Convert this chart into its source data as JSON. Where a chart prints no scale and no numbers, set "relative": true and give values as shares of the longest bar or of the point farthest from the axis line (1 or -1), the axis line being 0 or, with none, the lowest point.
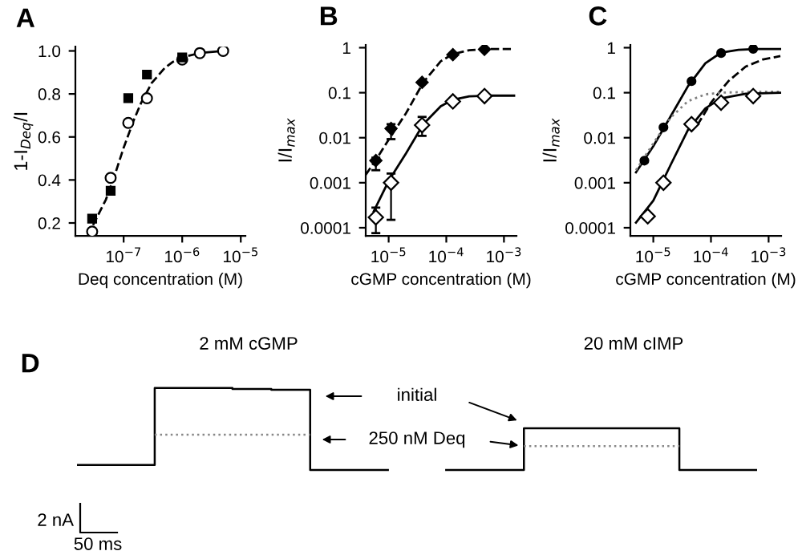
{
  "chart_data": [
    {
      "type": "scatter",
      "title": "A",
      "xlabel": "Deq concentration (M)",
      "ylabel": "1-I$_{Deq}$/I",
      "log": "x",
      "xlim": [
        1.5e-08,
        1.2e-05
      ],
      "ylim": [
        0.14,
        1.02
      ],
      "xticks": [
        {
          "value": 1e-07,
          "label": "10$^{−7}$"
        },
        {
          "value": 1e-06,
          "label": "10$^{−6}$"
        },
        {
          "value": 1e-05,
          "label": "10$^{−5}$"
        }
      ],
      "yticks": [
        0.2,
        0.4,
        0.6,
        0.8,
        {
          "value": 1.0,
          "label": "1.0"
        }
      ],
      "series": [
        {
          "type": "line",
          "line_style": "dashed",
          "marker": "none",
          "color": "#000000",
          "x": [
            3e-08,
            5e-08,
            7e-08,
            1e-07,
            1.5e-07,
            2e-07,
            3e-07,
            5e-07,
            7e-07,
            1e-06,
            2e-06
          ],
          "values": [
            0.19,
            0.31,
            0.42,
            0.55,
            0.68,
            0.76,
            0.85,
            0.92,
            0.95,
            0.97,
            0.99
          ]
        },
        {
          "type": "line",
          "line_style": "solid",
          "marker": "none",
          "color": "#000000",
          "x": [
            2e-06,
            5e-06
          ],
          "values": [
            0.99,
            1.0
          ]
        },
        {
          "marker": "square",
          "color": "#000000",
          "x": [
            2.9e-08,
            6e-08,
            1.2e-07,
            2.5e-07,
            1e-06
          ],
          "values": [
            0.22,
            0.35,
            0.78,
            0.89,
            0.97
          ]
        },
        {
          "marker": "circle",
          "color": "#ffffff",
          "x": [
            2.9e-08,
            6e-08,
            1.2e-07,
            2.5e-07,
            1e-06,
            2e-06,
            5e-06
          ],
          "values": [
            0.16,
            0.41,
            0.665,
            0.78,
            0.96,
            0.99,
            1.0
          ]
        }
      ]
    },
    {
      "type": "scatter",
      "title": "B",
      "xlabel": "cGMP concentration (M)",
      "ylabel": "I/I$_{max}$",
      "log": "xy",
      "xlim": [
        4e-06,
        0.00165
      ],
      "ylim": [
        6.6e-05,
        1.15
      ],
      "xticks": [
        {
          "value": 1e-05,
          "label": "10$^{−5}$"
        },
        {
          "value": 0.0001,
          "label": "10$^{−4}$"
        },
        {
          "value": 0.001,
          "label": "10$^{−3}$"
        }
      ],
      "yticks": [
        0.0001,
        0.001,
        0.01,
        0.1,
        1
      ],
      "series": [
        {
          "type": "line",
          "line_style": "dashed",
          "marker": "none",
          "color": "#000000",
          "x": [
            4e-06,
            6e-06,
            1e-05,
            2e-05,
            4e-05,
            8e-05,
            0.00013,
            0.00025,
            0.0005,
            0.0015
          ],
          "values": [
            0.0015,
            0.0032,
            0.009,
            0.035,
            0.17,
            0.5,
            0.72,
            0.88,
            0.93,
            0.93
          ]
        },
        {
          "type": "line",
          "line_style": "solid",
          "marker": "none",
          "color": "#000000",
          "x": [
            5.5e-06,
            1e-05,
            2e-05,
            4e-05,
            8e-05,
            0.00013,
            0.00025,
            0.0005,
            0.0015
          ],
          "values": [
            0.00023,
            0.0011,
            0.0045,
            0.02,
            0.05,
            0.07,
            0.083,
            0.086,
            0.086
          ]
        },
        {
          "marker": "diamond",
          "color": "#000000",
          "x": [
            6e-06,
            1.1e-05,
            3.8e-05,
            0.00013,
            0.00046
          ],
          "values": [
            0.0031,
            0.016,
            0.17,
            0.7,
            0.92
          ],
          "errors": [
            [
              0.0019,
              0.0036
            ],
            [
              0.0093,
              0.02
            ],
            null,
            null,
            null
          ]
        },
        {
          "marker": "diamond",
          "color": "#ffffff",
          "x": [
            6e-06,
            1.1e-05,
            3.8e-05,
            0.00013,
            0.00046
          ],
          "values": [
            0.00017,
            0.001,
            0.019,
            0.064,
            0.084
          ],
          "errors": [
            [
              7.6e-05,
              0.00028
            ],
            [
              0.00015,
              0.0016
            ],
            [
              0.011,
              0.029
            ],
            null,
            null
          ]
        }
      ]
    },
    {
      "type": "scatter",
      "title": "C",
      "xlabel": "cGMP concentration (M)",
      "ylabel": "I/I$_{max}$",
      "log": "xy",
      "xlim": [
        4e-06,
        0.00165
      ],
      "ylim": [
        6.6e-05,
        1.15
      ],
      "xticks": [
        {
          "value": 1e-05,
          "label": "10$^{−5}$"
        },
        {
          "value": 0.0001,
          "label": "10$^{−4}$"
        },
        {
          "value": 0.001,
          "label": "10$^{−3}$"
        }
      ],
      "yticks": [
        0.0001,
        0.001,
        0.01,
        0.1,
        1
      ],
      "series": [
        {
          "type": "line",
          "line_style": "solid",
          "marker": "none",
          "color": "#000000",
          "x": [
            5e-06,
            1e-05,
            2e-05,
            4e-05,
            8e-05,
            0.00015,
            0.0003,
            0.0006,
            0.0016
          ],
          "values": [
            0.0017,
            0.0065,
            0.03,
            0.14,
            0.45,
            0.78,
            0.9,
            0.93,
            0.93
          ]
        },
        {
          "type": "line",
          "line_style": "dashed",
          "marker": "none",
          "color": "#000000",
          "x": [
            5.8e-05,
            0.0001,
            0.0002,
            0.0004,
            0.0008,
            0.0016
          ],
          "values": [
            0.019,
            0.06,
            0.18,
            0.38,
            0.55,
            0.65
          ]
        },
        {
          "type": "line",
          "line_style": "dotted",
          "marker": "none",
          "color": "#808080",
          "x": [
            5e-06,
            1e-05,
            2e-05,
            4e-05,
            8e-05,
            0.00015,
            0.0005,
            0.0016
          ],
          "values": [
            0.0019,
            0.0075,
            0.028,
            0.065,
            0.092,
            0.1,
            0.105,
            0.105
          ]
        },
        {
          "type": "line",
          "line_style": "solid",
          "marker": "none",
          "color": "#000000",
          "x": [
            5e-06,
            1e-05,
            2e-05,
            4e-05,
            8e-05,
            0.00015,
            0.0004,
            0.0016
          ],
          "values": [
            0.00013,
            0.0004,
            0.0025,
            0.015,
            0.045,
            0.075,
            0.095,
            0.1
          ]
        },
        {
          "marker": "circle",
          "color": "#000000",
          "x": [
            7e-06,
            1.5e-05,
            4.6e-05,
            0.00015,
            0.00054
          ],
          "values": [
            0.0031,
            0.017,
            0.18,
            0.76,
            0.94
          ]
        },
        {
          "marker": "diamond",
          "color": "#ffffff",
          "x": [
            8e-06,
            1.5e-05,
            4.6e-05,
            0.00015,
            0.00054
          ],
          "values": [
            0.00018,
            0.001,
            0.02,
            0.06,
            0.084
          ]
        }
      ]
    },
    {
      "type": "step",
      "title": "D",
      "relative": true,
      "categories": [
        null,
        null,
        null,
        null,
        null,
        null,
        null,
        null,
        null,
        null,
        null,
        null,
        null,
        null,
        null,
        null,
        null,
        null,
        null,
        null,
        null,
        null,
        null,
        null,
        null,
        null,
        null,
        null,
        null,
        null,
        null,
        null,
        null,
        null,
        null,
        null
      ],
      "annotations": [
        "2 mM cGMP",
        "20 mM cIMP",
        "initial",
        "250 nM Deq",
        "2 nA",
        "50 ms"
      ],
      "series": [
        {
          "color": "#000000",
          "line_style": "solid",
          "values": [
            0.06,
            0.06,
            0.06,
            0.06,
            1,
            1,
            1,
            1,
            0.99,
            0.99,
            0.98,
            0.98,
            0,
            0,
            0,
            0,
            0,
            null,
            null,
            null,
            null,
            null,
            null,
            null,
            null,
            null,
            null,
            null,
            null,
            null,
            null,
            null,
            null,
            null,
            null,
            null
          ]
        },
        {
          "color": "#000000",
          "line_style": "solid",
          "values": [
            null,
            null,
            null,
            null,
            null,
            null,
            null,
            null,
            null,
            null,
            null,
            null,
            null,
            null,
            null,
            null,
            null,
            null,
            null,
            0,
            0,
            0,
            0,
            0.51,
            0.51,
            0.51,
            0.51,
            0.51,
            0.51,
            0.51,
            0.51,
            0,
            0,
            0,
            0,
            0
          ]
        },
        {
          "color": "#888888",
          "line_style": "dotted",
          "values": [
            null,
            null,
            null,
            null,
            0.43,
            0.43,
            0.43,
            0.43,
            0.43,
            0.43,
            0.43,
            0.43,
            0.43,
            null,
            null,
            null,
            null,
            null,
            null,
            null,
            null,
            null,
            null,
            null,
            null,
            null,
            null,
            null,
            null,
            null,
            null,
            null,
            null,
            null,
            null,
            null
          ]
        },
        {
          "color": "#888888",
          "line_style": "dotted",
          "values": [
            null,
            null,
            null,
            null,
            null,
            null,
            null,
            null,
            null,
            null,
            null,
            null,
            null,
            null,
            null,
            null,
            null,
            null,
            null,
            null,
            null,
            null,
            null,
            0.29,
            0.29,
            0.29,
            0.29,
            0.29,
            0.29,
            0.29,
            0.29,
            0.29,
            null,
            null,
            null,
            null
          ]
        }
      ]
    }
  ]
}
